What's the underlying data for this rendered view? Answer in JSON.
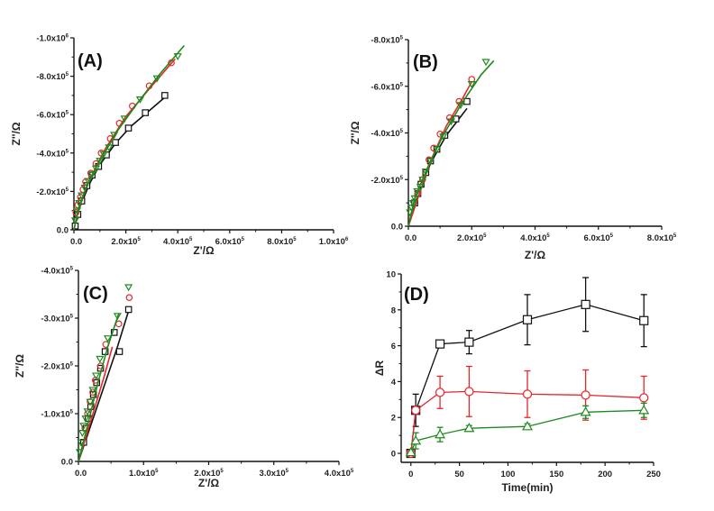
{
  "figure": {
    "colors": {
      "black": "#111111",
      "red": "#e8262a",
      "green": "#1e8a1e"
    }
  },
  "chart_data": [
    {
      "id": "A",
      "type": "scatter",
      "panel_label": "(A)",
      "title": "",
      "xlabel": "Z'/Ω",
      "ylabel": "Z''/Ω",
      "xlim": [
        0,
        1000000
      ],
      "ylim": [
        0,
        -1000000
      ],
      "x_ticks": [
        0,
        200000,
        400000,
        600000,
        800000,
        1000000
      ],
      "x_tick_labels": [
        {
          "mant": "0.0",
          "exp": ""
        },
        {
          "mant": "2.0x10",
          "exp": "5"
        },
        {
          "mant": "4.0x10",
          "exp": "5"
        },
        {
          "mant": "6.0x10",
          "exp": "5"
        },
        {
          "mant": "8.0x10",
          "exp": "5"
        },
        {
          "mant": "1.0x10",
          "exp": "6"
        }
      ],
      "y_ticks": [
        0,
        -200000,
        -400000,
        -600000,
        -800000,
        -1000000
      ],
      "y_tick_labels": [
        {
          "mant": "0.0",
          "exp": ""
        },
        {
          "mant": "-2.0x10",
          "exp": "5"
        },
        {
          "mant": "-4.0x10",
          "exp": "5"
        },
        {
          "mant": "-6.0x10",
          "exp": "5"
        },
        {
          "mant": "-8.0x10",
          "exp": "5"
        },
        {
          "mant": "-1.0x10",
          "exp": "6"
        }
      ],
      "grid": false,
      "series": [
        {
          "name": "black-squares",
          "marker": "square",
          "color": "black",
          "points": [
            [
              5000,
              -20000
            ],
            [
              15000,
              -80000
            ],
            [
              30000,
              -150000
            ],
            [
              50000,
              -230000
            ],
            [
              70000,
              -285000
            ],
            [
              95000,
              -330000
            ],
            [
              125000,
              -390000
            ],
            [
              160000,
              -455000
            ],
            [
              210000,
              -530000
            ],
            [
              275000,
              -610000
            ],
            [
              350000,
              -700000
            ]
          ],
          "fit": [
            [
              0,
              0
            ],
            [
              20000,
              -110000
            ],
            [
              60000,
              -240000
            ],
            [
              100000,
              -340000
            ],
            [
              160000,
              -450000
            ],
            [
              220000,
              -540000
            ],
            [
              290000,
              -620000
            ],
            [
              350000,
              -690000
            ]
          ]
        },
        {
          "name": "red-circles",
          "marker": "circle",
          "color": "red",
          "points": [
            [
              8000,
              -90000
            ],
            [
              15000,
              -130000
            ],
            [
              25000,
              -170000
            ],
            [
              35000,
              -210000
            ],
            [
              45000,
              -250000
            ],
            [
              65000,
              -295000
            ],
            [
              85000,
              -345000
            ],
            [
              105000,
              -400000
            ],
            [
              140000,
              -475000
            ],
            [
              175000,
              -555000
            ],
            [
              225000,
              -645000
            ],
            [
              290000,
              -750000
            ],
            [
              375000,
              -870000
            ]
          ],
          "fit": [
            [
              0,
              0
            ],
            [
              20000,
              -120000
            ],
            [
              60000,
              -260000
            ],
            [
              120000,
              -420000
            ],
            [
              200000,
              -590000
            ],
            [
              300000,
              -750000
            ],
            [
              390000,
              -890000
            ]
          ]
        },
        {
          "name": "green-triangles",
          "marker": "triangle-down",
          "color": "green",
          "points": [
            [
              5000,
              -50000
            ],
            [
              12000,
              -100000
            ],
            [
              20000,
              -140000
            ],
            [
              30000,
              -180000
            ],
            [
              42000,
              -220000
            ],
            [
              55000,
              -255000
            ],
            [
              70000,
              -290000
            ],
            [
              85000,
              -320000
            ],
            [
              100000,
              -360000
            ],
            [
              115000,
              -395000
            ],
            [
              135000,
              -430000
            ],
            [
              155000,
              -495000
            ],
            [
              195000,
              -580000
            ],
            [
              255000,
              -680000
            ],
            [
              320000,
              -790000
            ],
            [
              400000,
              -905000
            ]
          ],
          "fit": [
            [
              0,
              0
            ],
            [
              15000,
              -100000
            ],
            [
              50000,
              -230000
            ],
            [
              100000,
              -360000
            ],
            [
              170000,
              -520000
            ],
            [
              250000,
              -670000
            ],
            [
              330000,
              -810000
            ],
            [
              425000,
              -960000
            ]
          ]
        }
      ]
    },
    {
      "id": "B",
      "type": "scatter",
      "panel_label": "(B)",
      "title": "",
      "xlabel": "Z'/Ω",
      "ylabel": "Z''/Ω",
      "xlim": [
        0,
        800000
      ],
      "ylim": [
        0,
        -800000
      ],
      "x_ticks": [
        0,
        200000,
        400000,
        600000,
        800000
      ],
      "x_tick_labels": [
        {
          "mant": "0.0",
          "exp": ""
        },
        {
          "mant": "2.0x10",
          "exp": "5"
        },
        {
          "mant": "4.0x10",
          "exp": "5"
        },
        {
          "mant": "6.0x10",
          "exp": "5"
        },
        {
          "mant": "8.0x10",
          "exp": "5"
        }
      ],
      "y_ticks": [
        0,
        -200000,
        -400000,
        -600000,
        -800000
      ],
      "y_tick_labels": [
        {
          "mant": "0.0",
          "exp": ""
        },
        {
          "mant": "-2.0x10",
          "exp": "5"
        },
        {
          "mant": "-4.0x10",
          "exp": "5"
        },
        {
          "mant": "-6.0x10",
          "exp": "5"
        },
        {
          "mant": "-8.0x10",
          "exp": "5"
        }
      ],
      "grid": false,
      "series": [
        {
          "name": "black-squares",
          "marker": "square",
          "color": "black",
          "points": [
            [
              20000,
              -100000
            ],
            [
              30000,
              -140000
            ],
            [
              40000,
              -180000
            ],
            [
              55000,
              -230000
            ],
            [
              70000,
              -280000
            ],
            [
              90000,
              -330000
            ],
            [
              115000,
              -390000
            ],
            [
              150000,
              -460000
            ],
            [
              185000,
              -535000
            ]
          ],
          "fit": [
            [
              0,
              0
            ],
            [
              30000,
              -130000
            ],
            [
              70000,
              -270000
            ],
            [
              120000,
              -390000
            ],
            [
              185000,
              -505000
            ]
          ]
        },
        {
          "name": "red-circles",
          "marker": "circle",
          "color": "red",
          "points": [
            [
              30000,
              -140000
            ],
            [
              45000,
              -200000
            ],
            [
              65000,
              -285000
            ],
            [
              80000,
              -335000
            ],
            [
              100000,
              -395000
            ],
            [
              130000,
              -465000
            ],
            [
              160000,
              -535000
            ],
            [
              200000,
              -630000
            ]
          ],
          "fit": [
            [
              0,
              0
            ],
            [
              30000,
              -120000
            ],
            [
              70000,
              -280000
            ],
            [
              120000,
              -430000
            ],
            [
              170000,
              -545000
            ],
            [
              200000,
              -620000
            ]
          ]
        },
        {
          "name": "green-triangles",
          "marker": "triangle-down",
          "color": "green",
          "points": [
            [
              5000,
              -60000
            ],
            [
              10000,
              -80000
            ],
            [
              15000,
              -100000
            ],
            [
              20000,
              -120000
            ],
            [
              28000,
              -150000
            ],
            [
              38000,
              -170000
            ],
            [
              45000,
              -200000
            ],
            [
              55000,
              -235000
            ],
            [
              70000,
              -280000
            ],
            [
              90000,
              -330000
            ],
            [
              110000,
              -385000
            ],
            [
              135000,
              -450000
            ],
            [
              165000,
              -520000
            ],
            [
              200000,
              -610000
            ],
            [
              245000,
              -705000
            ]
          ],
          "fit": [
            [
              0,
              0
            ],
            [
              20000,
              -120000
            ],
            [
              60000,
              -250000
            ],
            [
              110000,
              -390000
            ],
            [
              170000,
              -530000
            ],
            [
              230000,
              -650000
            ],
            [
              270000,
              -710000
            ]
          ]
        }
      ]
    },
    {
      "id": "C",
      "type": "scatter",
      "panel_label": "(C)",
      "title": "",
      "xlabel": "Z'/Ω",
      "ylabel": "Z''/Ω",
      "xlim": [
        0,
        400000
      ],
      "ylim": [
        0,
        -400000
      ],
      "x_ticks": [
        0,
        100000,
        200000,
        300000,
        400000
      ],
      "x_tick_labels": [
        {
          "mant": "0.0",
          "exp": ""
        },
        {
          "mant": "1.0x10",
          "exp": "5"
        },
        {
          "mant": "2.0x10",
          "exp": "5"
        },
        {
          "mant": "3.0x10",
          "exp": "5"
        },
        {
          "mant": "4.0x10",
          "exp": "5"
        }
      ],
      "y_ticks": [
        0,
        -100000,
        -200000,
        -300000,
        -400000
      ],
      "y_tick_labels": [
        {
          "mant": "0.0",
          "exp": ""
        },
        {
          "mant": "-1.0x10",
          "exp": "5"
        },
        {
          "mant": "-2.0x10",
          "exp": "5"
        },
        {
          "mant": "-3.0x10",
          "exp": "5"
        },
        {
          "mant": "-4.0x10",
          "exp": "5"
        }
      ],
      "grid": false,
      "series": [
        {
          "name": "black-squares",
          "marker": "square",
          "color": "black",
          "points": [
            [
              8000,
              -40000
            ],
            [
              12000,
              -70000
            ],
            [
              15000,
              -90000
            ],
            [
              19000,
              -115000
            ],
            [
              23000,
              -140000
            ],
            [
              28000,
              -165000
            ],
            [
              34000,
              -195000
            ],
            [
              41000,
              -230000
            ],
            [
              55000,
              -270000
            ],
            [
              63000,
              -230000
            ],
            [
              77000,
              -318000
            ]
          ],
          "fit": [
            [
              0,
              0
            ],
            [
              20000,
              -80000
            ],
            [
              40000,
              -160000
            ],
            [
              60000,
              -240000
            ],
            [
              78000,
              -320000
            ]
          ]
        },
        {
          "name": "red-circles",
          "marker": "circle",
          "color": "red",
          "points": [
            [
              10000,
              -70000
            ],
            [
              14000,
              -100000
            ],
            [
              18000,
              -125000
            ],
            [
              22000,
              -145000
            ],
            [
              26000,
              -170000
            ],
            [
              34000,
              -200000
            ],
            [
              42000,
              -245000
            ],
            [
              62000,
              -288000
            ],
            [
              78000,
              -343000
            ]
          ],
          "fit": [
            [
              0,
              0
            ],
            [
              20000,
              -90000
            ],
            [
              40000,
              -180000
            ],
            [
              52000,
              -240000
            ]
          ]
        },
        {
          "name": "green-triangles",
          "marker": "triangle-down",
          "color": "green",
          "points": [
            [
              2000,
              -20000
            ],
            [
              4000,
              -40000
            ],
            [
              6000,
              -60000
            ],
            [
              8000,
              -75000
            ],
            [
              11000,
              -90000
            ],
            [
              14000,
              -105000
            ],
            [
              18000,
              -125000
            ],
            [
              22000,
              -150000
            ],
            [
              27000,
              -180000
            ],
            [
              33000,
              -215000
            ],
            [
              45000,
              -258000
            ],
            [
              60000,
              -305000
            ],
            [
              77000,
              -365000
            ]
          ],
          "fit": [
            [
              0,
              0
            ],
            [
              15000,
              -80000
            ],
            [
              30000,
              -165000
            ],
            [
              45000,
              -240000
            ],
            [
              62000,
              -310000
            ]
          ]
        }
      ]
    },
    {
      "id": "D",
      "type": "line",
      "panel_label": "(D)",
      "title": "",
      "xlabel": "Time(min)",
      "ylabel": "ΔR",
      "xlim": [
        -10,
        250
      ],
      "ylim": [
        -0.5,
        10
      ],
      "x_ticks": [
        0,
        50,
        100,
        150,
        200,
        250
      ],
      "x_tick_labels": [
        "0",
        "50",
        "100",
        "150",
        "200",
        "250"
      ],
      "y_ticks": [
        0,
        2,
        4,
        6,
        8,
        10
      ],
      "y_tick_labels": [
        "0",
        "2",
        "4",
        "6",
        "8",
        "10"
      ],
      "grid": false,
      "x": [
        0,
        5,
        30,
        60,
        120,
        180,
        240
      ],
      "series": [
        {
          "name": "black-squares",
          "marker": "square",
          "color": "black",
          "values": [
            0,
            2.4,
            6.1,
            6.2,
            7.45,
            8.3,
            7.4
          ],
          "errors": [
            0,
            0.9,
            0,
            0.65,
            1.4,
            1.5,
            1.45
          ]
        },
        {
          "name": "red-circles",
          "marker": "circle",
          "color": "red",
          "values": [
            0,
            2.4,
            3.4,
            3.45,
            3.3,
            3.25,
            3.1
          ],
          "errors": [
            0,
            0,
            0.9,
            1.4,
            1.3,
            1.4,
            1.2
          ]
        },
        {
          "name": "green-triangles",
          "marker": "triangle-up",
          "color": "green",
          "values": [
            0.05,
            0.7,
            1.05,
            1.4,
            1.5,
            2.3,
            2.4
          ],
          "errors": [
            0,
            0.45,
            0.4,
            0.15,
            0.15,
            0.35,
            0.4
          ]
        }
      ]
    }
  ]
}
